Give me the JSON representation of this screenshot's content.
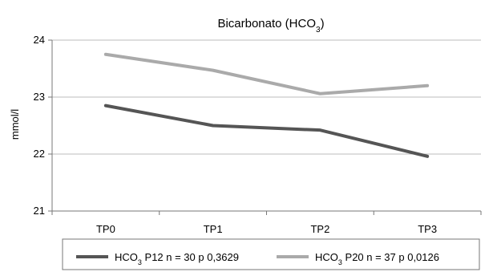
{
  "chart_data": {
    "type": "line",
    "title": "Bicarbonato (HCO",
    "title_subscript": "3",
    "title_suffix": ")",
    "xlabel": "",
    "ylabel": "mmol/l",
    "categories": [
      "TP0",
      "TP1",
      "TP2",
      "TP3"
    ],
    "ylim": [
      21,
      24
    ],
    "yticks": [
      21,
      22,
      23,
      24
    ],
    "grid": true,
    "legend_position": "bottom",
    "series": [
      {
        "name_prefix": "HCO",
        "name_subscript": "3",
        "name_suffix": " P12 n = 30 p 0,3629",
        "color": "#555555",
        "values": [
          22.85,
          22.5,
          22.42,
          21.96
        ]
      },
      {
        "name_prefix": "HCO",
        "name_subscript": "3",
        "name_suffix": " P20 n = 37 p 0,0126",
        "color": "#aaaaaa",
        "values": [
          23.75,
          23.47,
          23.06,
          23.2
        ]
      }
    ]
  }
}
